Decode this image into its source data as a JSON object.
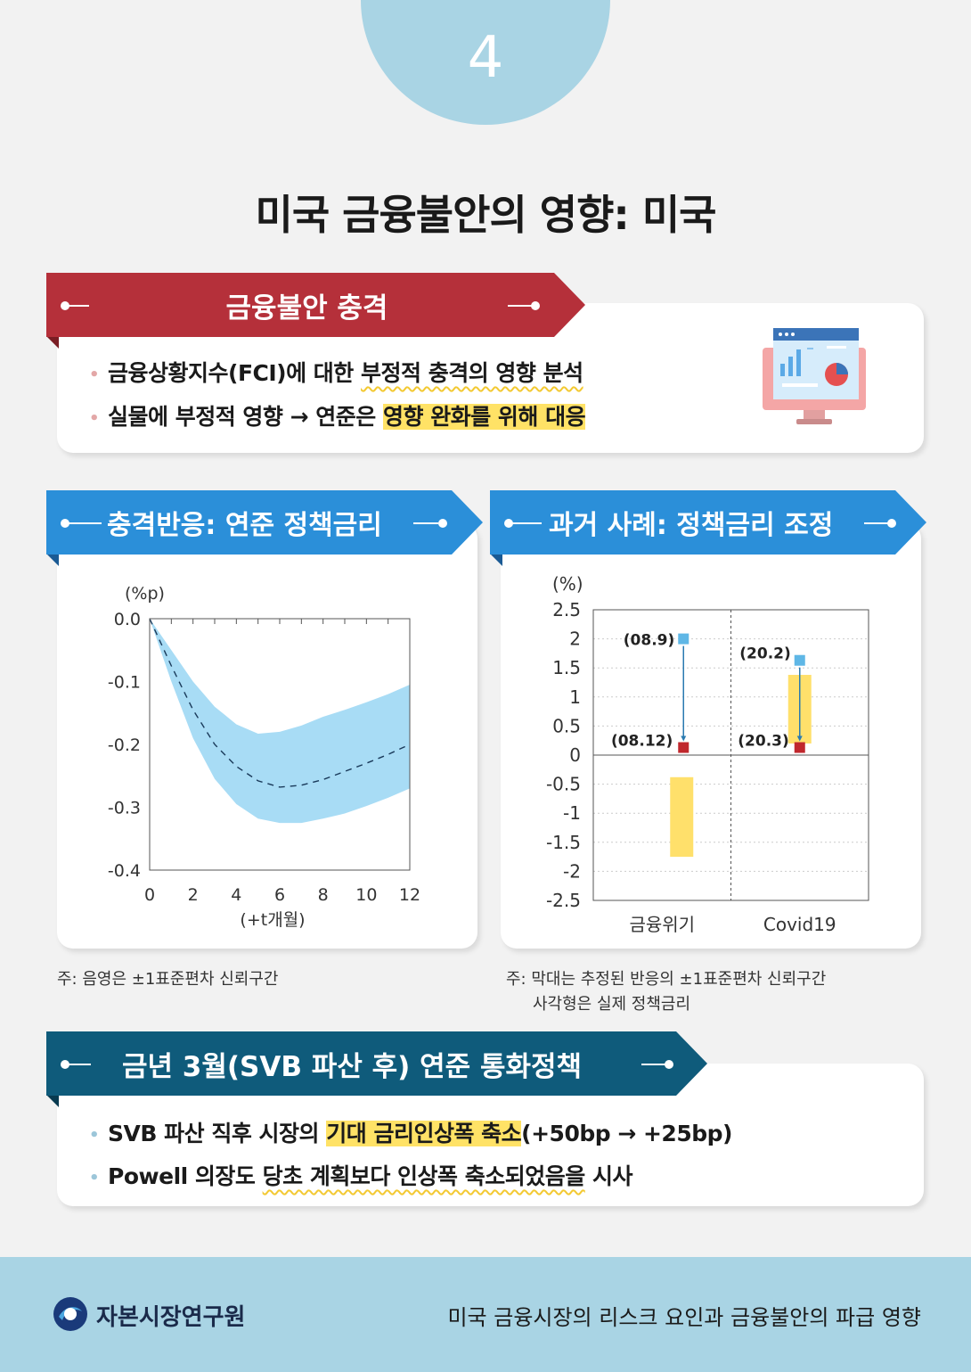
{
  "page_number": "4",
  "title": "미국 금융불안의 영향: 미국",
  "section1": {
    "banner": "금융불안 충격",
    "bullets": [
      {
        "plain": "금융상황지수(FCI)에 대한 ",
        "marked": "부정적 충격의 영향 분석",
        "after": ""
      },
      {
        "plain": "실물에 부정적 영향 → 연준은 ",
        "marked": "영향 완화를 위해 대응",
        "after": ""
      }
    ],
    "icon": "monitor-chart-icon"
  },
  "chart_left_panel": {
    "banner": "충격반응: 연준 정책금리",
    "note": "주: 음영은 ±1표준편차 신뢰구간"
  },
  "chart_right_panel": {
    "banner": "과거 사례: 정책금리 조정",
    "note_line1": "주: 막대는 추정된 반응의 ±1표준편차 신뢰구간",
    "note_line2": "사각형은 실제 정책금리"
  },
  "chart_data": [
    {
      "type": "line",
      "ylabel": "(%p)",
      "xlabel": "(+t개월)",
      "ylim": [
        -0.4,
        0.0
      ],
      "xlim": [
        0,
        12
      ],
      "x_ticks": [
        "0",
        "2",
        "4",
        "6",
        "8",
        "10",
        "12"
      ],
      "y_ticks": [
        "0.0",
        "-0.1",
        "-0.2",
        "-0.3",
        "-0.4"
      ],
      "x": [
        0,
        1,
        2,
        3,
        4,
        5,
        6,
        7,
        8,
        9,
        10,
        11,
        12
      ],
      "series": [
        {
          "values": [
            0.0,
            -0.075,
            -0.145,
            -0.2,
            -0.235,
            -0.258,
            -0.268,
            -0.265,
            -0.256,
            -0.243,
            -0.23,
            -0.216,
            -0.2
          ]
        },
        {
          "values": [
            0.0,
            -0.05,
            -0.1,
            -0.14,
            -0.168,
            -0.183,
            -0.18,
            -0.17,
            -0.156,
            -0.145,
            -0.133,
            -0.12,
            -0.105
          ]
        },
        {
          "values": [
            0.0,
            -0.1,
            -0.19,
            -0.255,
            -0.295,
            -0.318,
            -0.325,
            -0.325,
            -0.318,
            -0.31,
            -0.298,
            -0.285,
            -0.27
          ]
        }
      ],
      "band_color": "#a8dcf5",
      "line_color": "#1a3a5a"
    },
    {
      "type": "bar",
      "ylabel": "(%)",
      "ylim": [
        -2.5,
        2.5
      ],
      "y_ticks": [
        "2.5",
        "2",
        "1.5",
        "1",
        "0.5",
        "0",
        "-0.5",
        "-1",
        "-1.5",
        "-2",
        "-2.5"
      ],
      "categories": [
        "금융위기",
        "Covid19"
      ],
      "bars": [
        {
          "low": -1.75,
          "high": -0.38
        },
        {
          "low": 0.2,
          "high": 1.38
        }
      ],
      "markers_before": [
        {
          "value": 2.0,
          "label": "(08.9)"
        },
        {
          "value": 1.63,
          "label": "(20.2)"
        }
      ],
      "markers_after": [
        {
          "value": 0.13,
          "label": "(08.12)"
        },
        {
          "value": 0.13,
          "label": "(20.3)"
        }
      ],
      "colors": {
        "bar": "#ffe06b",
        "before": "#5fb7e6",
        "after": "#c0272d",
        "arrow": "#2a7ab0"
      }
    }
  ],
  "section4": {
    "banner": "금년 3월(SVB 파산 후) 연준 통화정책",
    "bullets": [
      {
        "plain": "SVB 파산 직후 시장의 ",
        "marked": "기대 금리인상폭 축소",
        "after": "(+50bp → +25bp)"
      },
      {
        "plain": "Powell 의장도 ",
        "marked": "당초 계획보다 인상폭 축소되었음을",
        "after": " 시사"
      }
    ]
  },
  "footer": {
    "logo_text": "자본시장연구원",
    "right_text": "미국 금융시장의 리스크 요인과 금융불안의 파급 영향"
  },
  "colors": {
    "red_banner": "#b5303a",
    "blue_banner": "#2b8fd9",
    "navy_banner": "#0f5b7b",
    "footer_bg": "#a9d4e4"
  }
}
